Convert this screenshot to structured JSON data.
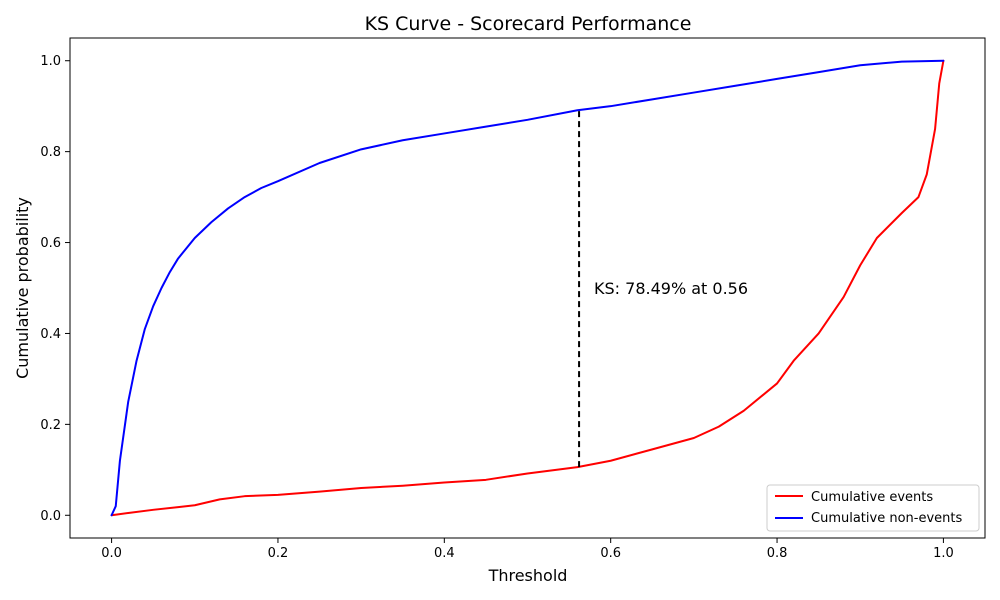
{
  "chart_data": {
    "type": "line",
    "title": "KS Curve - Scorecard Performance",
    "xlabel": "Threshold",
    "ylabel": "Cumulative probability",
    "xlim": [
      -0.05,
      1.05
    ],
    "ylim": [
      -0.05,
      1.05
    ],
    "xticks": [
      "0.0",
      "0.2",
      "0.4",
      "0.6",
      "0.8",
      "1.0"
    ],
    "yticks": [
      "0.0",
      "0.2",
      "0.4",
      "0.6",
      "0.8",
      "1.0"
    ],
    "grid": false,
    "legend_position": "lower-right",
    "series": [
      {
        "name": "Cumulative events",
        "color": "#ff0000",
        "x": [
          0.0,
          0.02,
          0.05,
          0.08,
          0.1,
          0.13,
          0.16,
          0.2,
          0.25,
          0.3,
          0.35,
          0.4,
          0.45,
          0.5,
          0.56,
          0.6,
          0.65,
          0.7,
          0.73,
          0.76,
          0.8,
          0.82,
          0.85,
          0.88,
          0.9,
          0.92,
          0.95,
          0.97,
          0.98,
          0.99,
          0.995,
          1.0
        ],
        "y": [
          0.0,
          0.005,
          0.012,
          0.018,
          0.022,
          0.035,
          0.042,
          0.045,
          0.052,
          0.06,
          0.065,
          0.072,
          0.078,
          0.092,
          0.106,
          0.12,
          0.145,
          0.17,
          0.195,
          0.23,
          0.29,
          0.34,
          0.4,
          0.48,
          0.55,
          0.61,
          0.665,
          0.7,
          0.75,
          0.85,
          0.95,
          1.0
        ]
      },
      {
        "name": "Cumulative non-events",
        "color": "#0000ff",
        "x": [
          0.0,
          0.005,
          0.01,
          0.02,
          0.03,
          0.04,
          0.05,
          0.06,
          0.07,
          0.08,
          0.1,
          0.12,
          0.14,
          0.16,
          0.18,
          0.2,
          0.25,
          0.3,
          0.35,
          0.4,
          0.45,
          0.5,
          0.56,
          0.6,
          0.65,
          0.7,
          0.75,
          0.8,
          0.85,
          0.9,
          0.95,
          1.0
        ],
        "y": [
          0.0,
          0.02,
          0.12,
          0.25,
          0.34,
          0.41,
          0.46,
          0.5,
          0.535,
          0.565,
          0.61,
          0.645,
          0.675,
          0.7,
          0.72,
          0.735,
          0.775,
          0.805,
          0.825,
          0.84,
          0.855,
          0.87,
          0.891,
          0.9,
          0.915,
          0.93,
          0.945,
          0.96,
          0.975,
          0.99,
          0.998,
          1.0
        ]
      }
    ],
    "annotations": [
      {
        "text": "KS: 78.49% at 0.56",
        "x": 0.58,
        "y": 0.5
      },
      {
        "kind": "dashed-vertical-line",
        "x": 0.562,
        "y_from": 0.106,
        "y_to": 0.891,
        "color": "#000000"
      }
    ]
  }
}
